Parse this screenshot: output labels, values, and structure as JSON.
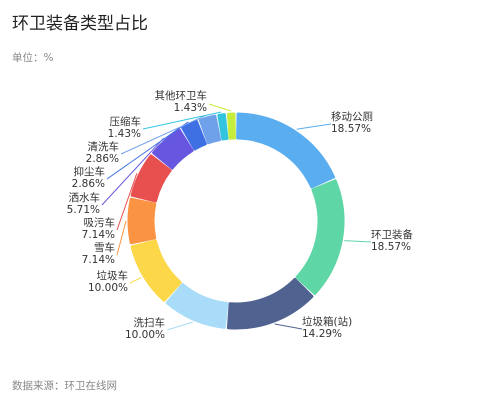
{
  "chart_data": {
    "type": "pie",
    "title": "环卫装备类型占比",
    "unit_label": "单位：%",
    "source": "数据来源：环卫在线网",
    "slices": [
      {
        "label": "移动公厕",
        "value": 18.57,
        "value_text": "18.57%",
        "color": "#5aaef0"
      },
      {
        "label": "环卫装备",
        "value": 18.57,
        "value_text": "18.57%",
        "color": "#5fd6a6"
      },
      {
        "label": "垃圾箱(站)",
        "value": 14.29,
        "value_text": "14.29%",
        "color": "#4f6290"
      },
      {
        "label": "洗扫车",
        "value": 10.0,
        "value_text": "10.00%",
        "color": "#a9dcf8"
      },
      {
        "label": "垃圾车",
        "value": 10.0,
        "value_text": "10.00%",
        "color": "#fcd748"
      },
      {
        "label": "雪车",
        "value": 7.14,
        "value_text": "7.14%",
        "color": "#fb9442"
      },
      {
        "label": "吸污车",
        "value": 7.14,
        "value_text": "7.14%",
        "color": "#e85050"
      },
      {
        "label": "洒水车",
        "value": 5.71,
        "value_text": "5.71%",
        "color": "#6756e0"
      },
      {
        "label": "抑尘车",
        "value": 2.86,
        "value_text": "2.86%",
        "color": "#3f70e3"
      },
      {
        "label": "清洗车",
        "value": 2.86,
        "value_text": "2.86%",
        "color": "#6fa0ea"
      },
      {
        "label": "压缩车",
        "value": 1.43,
        "value_text": "1.43%",
        "color": "#33c5e0"
      },
      {
        "label": "其他环卫车",
        "value": 1.43,
        "value_text": "1.43%",
        "color": "#c6ec3c"
      }
    ]
  }
}
